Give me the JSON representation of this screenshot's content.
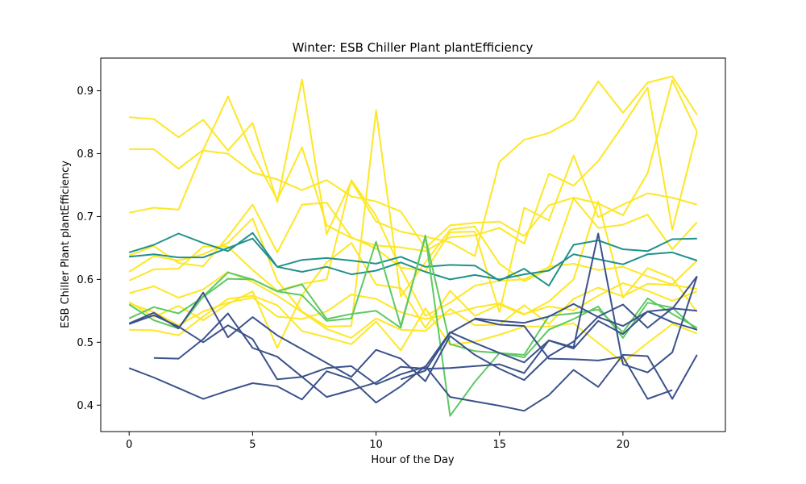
{
  "chart_data": {
    "type": "line",
    "title": "Winter: ESB Chiller Plant plantEfficiency",
    "xlabel": "Hour of the Day",
    "ylabel": "ESB Chiller Plant plantEfficiency",
    "xlim": [
      -1.15,
      24.15
    ],
    "ylim": [
      0.358,
      0.952
    ],
    "xticks": [
      0,
      5,
      10,
      15,
      20
    ],
    "yticks": [
      0.4,
      0.5,
      0.6,
      0.7,
      0.8,
      0.9
    ],
    "ytick_labels": [
      "0.4",
      "0.5",
      "0.6",
      "0.7",
      "0.8",
      "0.9"
    ],
    "grid": false,
    "legend": "none",
    "colors": {
      "navy": "#3b528b",
      "teal": "#21918c",
      "green": "#5ec962",
      "yellow": "#fde725"
    },
    "series": [
      {
        "color": "#fde725",
        "x": [
          0,
          1,
          2,
          3,
          4,
          5,
          6,
          7,
          8,
          9,
          10,
          11,
          12,
          13,
          14,
          15,
          16,
          17,
          18,
          19,
          20,
          21,
          22,
          23
        ],
        "values": [
          0.858,
          0.855,
          0.826,
          0.854,
          0.805,
          0.849,
          0.723,
          0.918,
          0.672,
          0.756,
          0.692,
          0.676,
          0.668,
          0.659,
          0.637,
          0.787,
          0.822,
          0.833,
          0.854,
          0.915,
          0.865,
          0.913,
          0.923,
          0.862
        ]
      },
      {
        "color": "#fde725",
        "x": [
          0,
          1,
          2,
          3,
          4,
          5,
          6,
          7,
          8,
          9,
          10,
          11,
          12,
          13,
          14,
          15,
          16,
          17,
          18,
          19,
          20,
          21,
          22,
          23
        ],
        "values": [
          0.807,
          0.807,
          0.776,
          0.806,
          0.891,
          0.8,
          0.727,
          0.81,
          0.686,
          0.666,
          0.654,
          0.651,
          0.645,
          0.667,
          0.67,
          0.682,
          0.657,
          0.768,
          0.749,
          0.788,
          0.845,
          0.905,
          0.679,
          0.835
        ]
      },
      {
        "color": "#fde725",
        "x": [
          0,
          1,
          2,
          3,
          4,
          5,
          6,
          7,
          8,
          9,
          10,
          11,
          12,
          13,
          14,
          15,
          16,
          17,
          18,
          19,
          20,
          21,
          22,
          23
        ],
        "values": [
          0.706,
          0.714,
          0.711,
          0.805,
          0.8,
          0.77,
          0.759,
          0.742,
          0.758,
          0.732,
          0.724,
          0.708,
          0.65,
          0.686,
          0.69,
          0.692,
          0.669,
          0.718,
          0.73,
          0.721,
          0.702,
          0.769,
          0.917,
          0.835
        ]
      },
      {
        "color": "#fde725",
        "x": [
          0,
          1,
          2,
          3,
          4,
          5,
          6,
          7,
          8,
          9,
          10,
          11,
          12,
          13,
          14,
          15,
          16,
          17,
          18,
          19,
          20,
          21,
          22,
          23
        ],
        "values": [
          0.638,
          0.653,
          0.626,
          0.621,
          0.668,
          0.719,
          0.643,
          0.719,
          0.722,
          0.667,
          0.649,
          0.619,
          0.613,
          0.675,
          0.676,
          0.548,
          0.714,
          0.694,
          0.797,
          0.699,
          0.719,
          0.737,
          0.73,
          0.719
        ]
      },
      {
        "color": "#fde725",
        "x": [
          0,
          1,
          2,
          3,
          4,
          5,
          6,
          7,
          8,
          9,
          10,
          11,
          12,
          13,
          14,
          15,
          16,
          17,
          18,
          19,
          20,
          21,
          22,
          23
        ],
        "values": [
          0.612,
          0.637,
          0.63,
          0.64,
          0.658,
          0.697,
          0.598,
          0.549,
          0.525,
          0.526,
          0.869,
          0.573,
          0.627,
          0.679,
          0.684,
          0.625,
          0.597,
          0.616,
          0.729,
          0.682,
          0.687,
          0.703,
          0.648,
          0.691
        ]
      },
      {
        "color": "#fde725",
        "x": [
          0,
          1,
          2,
          3,
          4,
          5,
          6,
          7,
          8,
          9,
          10,
          11,
          12,
          13,
          14,
          15,
          16,
          17,
          18,
          19,
          20,
          21,
          22,
          23
        ],
        "values": [
          0.598,
          0.616,
          0.617,
          0.652,
          0.652,
          0.615,
          0.582,
          0.593,
          0.6,
          0.758,
          0.701,
          0.617,
          0.542,
          0.563,
          0.59,
          0.598,
          0.6,
          0.62,
          0.625,
          0.615,
          0.62,
          0.605,
          0.592,
          0.63
        ]
      },
      {
        "color": "#fde725",
        "x": [
          0,
          1,
          2,
          3,
          4,
          5,
          6,
          7,
          8,
          9,
          10,
          11,
          12,
          13,
          14,
          15,
          16,
          17,
          18,
          19,
          20,
          21,
          22,
          23
        ],
        "values": [
          0.578,
          0.589,
          0.571,
          0.584,
          0.612,
          0.596,
          0.574,
          0.548,
          0.521,
          0.507,
          0.538,
          0.52,
          0.518,
          0.553,
          0.527,
          0.528,
          0.559,
          0.529,
          0.569,
          0.587,
          0.573,
          0.593,
          0.591,
          0.585
        ]
      },
      {
        "color": "#fde725",
        "x": [
          0,
          1,
          2,
          3,
          4,
          5,
          6,
          7,
          8,
          9,
          10,
          11,
          12,
          13,
          14,
          15,
          16,
          17,
          18,
          19,
          20,
          21,
          22,
          23
        ],
        "values": [
          0.562,
          0.548,
          0.527,
          0.549,
          0.563,
          0.571,
          0.541,
          0.537,
          0.549,
          0.576,
          0.569,
          0.548,
          0.537,
          0.545,
          0.555,
          0.562,
          0.545,
          0.557,
          0.551,
          0.574,
          0.594,
          0.582,
          0.566,
          0.581
        ]
      },
      {
        "color": "#fde725",
        "x": [
          0,
          1,
          2,
          3,
          4,
          5,
          6,
          7,
          8,
          9,
          10,
          11,
          12,
          13,
          14,
          15,
          16,
          17,
          18,
          19,
          20,
          21,
          22,
          23
        ],
        "values": [
          0.52,
          0.519,
          0.511,
          0.541,
          0.569,
          0.574,
          0.559,
          0.518,
          0.508,
          0.497,
          0.533,
          0.487,
          0.554,
          0.496,
          0.501,
          0.512,
          0.525,
          0.525,
          0.53,
          0.499,
          0.468,
          0.499,
          0.529,
          0.514
        ]
      },
      {
        "color": "#fde725",
        "x": [
          0,
          1,
          2,
          3,
          4,
          5,
          6,
          7,
          8,
          9,
          10,
          11,
          12,
          13,
          14,
          15,
          16,
          17,
          18,
          19,
          20,
          21,
          22,
          23
        ],
        "values": [
          0.564,
          0.54,
          0.558,
          0.535,
          0.561,
          0.581,
          0.491,
          0.575,
          0.627,
          0.658,
          0.592,
          0.586,
          0.523,
          0.582,
          0.542,
          0.56,
          0.544,
          0.565,
          0.6,
          0.724,
          0.571,
          0.618,
          0.602,
          0.548
        ]
      },
      {
        "color": "#21918c",
        "x": [
          0,
          1,
          2,
          3,
          4,
          5,
          6,
          7,
          8,
          9,
          10,
          11,
          12,
          13,
          14,
          15,
          16,
          17,
          18,
          19,
          20,
          21,
          22,
          23
        ],
        "values": [
          0.643,
          0.655,
          0.673,
          0.658,
          0.645,
          0.674,
          0.62,
          0.631,
          0.634,
          0.63,
          0.625,
          0.636,
          0.62,
          0.623,
          0.622,
          0.598,
          0.617,
          0.59,
          0.655,
          0.662,
          0.648,
          0.645,
          0.664,
          0.665
        ]
      },
      {
        "color": "#21918c",
        "x": [
          0,
          1,
          2,
          3,
          4,
          5,
          6,
          7,
          8,
          9,
          10,
          11,
          12,
          13,
          14,
          15,
          16,
          17,
          18,
          19,
          20,
          21,
          22,
          23
        ],
        "values": [
          0.636,
          0.64,
          0.635,
          0.635,
          0.65,
          0.665,
          0.62,
          0.612,
          0.62,
          0.608,
          0.614,
          0.627,
          0.612,
          0.6,
          0.607,
          0.6,
          0.608,
          0.614,
          0.64,
          0.632,
          0.624,
          0.64,
          0.643,
          0.63
        ]
      },
      {
        "color": "#5ec962",
        "x": [
          0,
          1,
          2,
          3,
          4,
          5,
          6,
          7,
          8,
          9,
          10,
          11,
          12,
          13,
          14,
          15,
          16,
          17,
          18,
          19,
          20,
          21,
          22,
          23
        ],
        "values": [
          0.56,
          0.535,
          0.522,
          0.573,
          0.611,
          0.6,
          0.581,
          0.592,
          0.537,
          0.545,
          0.55,
          0.523,
          0.67,
          0.383,
          0.437,
          0.483,
          0.476,
          0.52,
          0.537,
          0.557,
          0.507,
          0.563,
          0.555,
          0.519
        ]
      },
      {
        "color": "#5ec962",
        "x": [
          0,
          1,
          2,
          3,
          4,
          5,
          6,
          7,
          8,
          9,
          10,
          11,
          12,
          13,
          14,
          15,
          16,
          17,
          18,
          19,
          20,
          21,
          22,
          23
        ],
        "values": [
          0.538,
          0.556,
          0.546,
          0.572,
          0.601,
          0.6,
          0.581,
          0.575,
          0.534,
          0.538,
          0.66,
          0.526,
          0.667,
          0.497,
          0.486,
          0.483,
          0.48,
          0.542,
          0.546,
          0.552,
          0.516,
          0.57,
          0.545,
          0.523
        ]
      },
      {
        "color": "#3b528b",
        "x": [
          0,
          1,
          2,
          3,
          4,
          5,
          6,
          7,
          8,
          9,
          10,
          11,
          12,
          13,
          14,
          15,
          16,
          17,
          18,
          19,
          20,
          21,
          22,
          23
        ],
        "values": [
          0.53,
          0.547,
          0.522,
          0.579,
          0.508,
          0.54,
          0.511,
          0.489,
          0.467,
          0.445,
          0.488,
          0.474,
          0.438,
          0.51,
          0.48,
          0.458,
          0.44,
          0.478,
          0.501,
          0.541,
          0.56,
          0.523,
          0.554,
          0.55
        ]
      },
      {
        "color": "#3b528b",
        "x": [
          1,
          2,
          3,
          4,
          5,
          6,
          7,
          8,
          9,
          10,
          11,
          12,
          13,
          14,
          15,
          16,
          17,
          18,
          19,
          20,
          21,
          22,
          23
        ],
        "values": [
          0.475,
          0.474,
          0.505,
          0.546,
          0.491,
          0.477,
          0.445,
          0.413,
          0.424,
          0.436,
          0.461,
          0.458,
          0.459,
          0.462,
          0.465,
          0.451,
          0.503,
          0.492,
          0.673,
          0.465,
          0.452,
          0.484,
          0.605
        ]
      },
      {
        "color": "#3b528b",
        "x": [
          0,
          1,
          2,
          3,
          4,
          5,
          6,
          7,
          8,
          9,
          10,
          11,
          12,
          13,
          14,
          15,
          16,
          17,
          18,
          19,
          20,
          21,
          22,
          23
        ],
        "values": [
          0.459,
          0.444,
          0.427,
          0.41,
          0.423,
          0.435,
          0.43,
          0.409,
          0.454,
          0.441,
          0.404,
          0.43,
          0.462,
          0.413,
          0.406,
          0.399,
          0.391,
          0.416,
          0.456,
          0.429,
          0.48,
          0.478,
          0.41,
          0.48
        ]
      },
      {
        "color": "#3b528b",
        "x": [
          0,
          1,
          2,
          3,
          4,
          5,
          6,
          7,
          8,
          9,
          10,
          11,
          12,
          13,
          14,
          15,
          16,
          17,
          18,
          19,
          20,
          21,
          22,
          23
        ],
        "values": [
          0.529,
          0.543,
          0.525,
          0.5,
          0.527,
          0.505,
          0.441,
          0.445,
          0.459,
          0.462,
          0.433,
          0.449,
          0.461,
          0.516,
          0.499,
          0.483,
          0.468,
          0.503,
          0.49,
          0.534,
          0.513,
          0.549,
          0.553,
          0.605
        ]
      },
      {
        "color": "#3b528b",
        "x": [
          11,
          12,
          13,
          14,
          15,
          16,
          17,
          18,
          19,
          20,
          21,
          22
        ],
        "values": [
          0.441,
          0.455,
          0.515,
          0.537,
          0.528,
          0.526,
          0.474,
          0.473,
          0.471,
          0.477,
          0.41,
          0.424
        ]
      },
      {
        "color": "#3b528b",
        "x": [
          14,
          15,
          16,
          17,
          18,
          19,
          20,
          21,
          22,
          23
        ],
        "values": [
          0.538,
          0.534,
          0.531,
          0.541,
          0.561,
          0.54,
          0.526,
          0.549,
          0.532,
          0.52
        ]
      }
    ]
  }
}
